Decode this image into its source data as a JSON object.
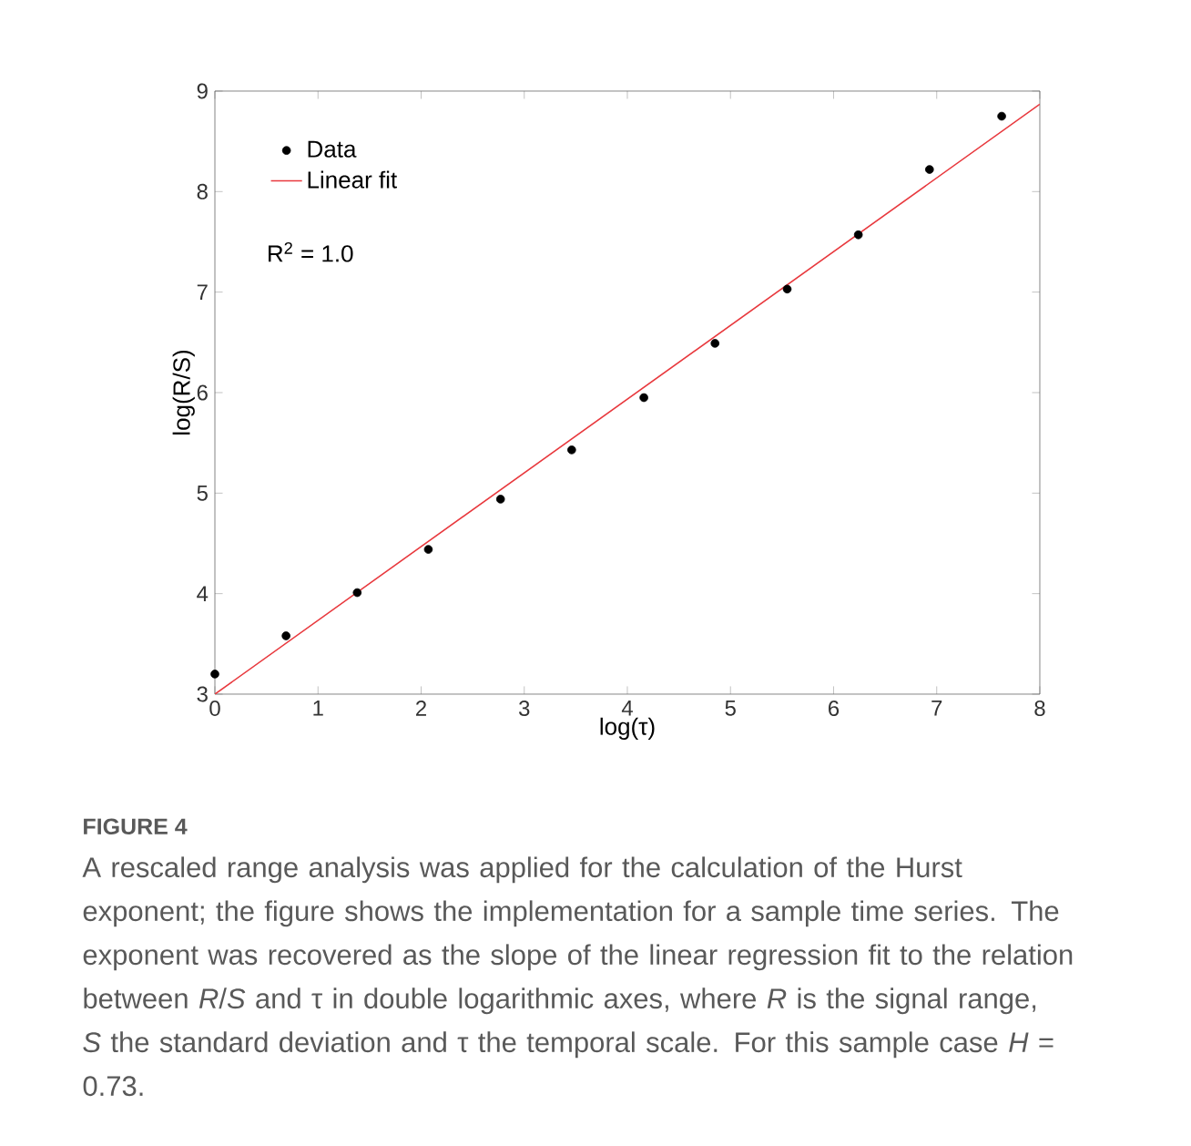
{
  "chart_data": {
    "type": "scatter",
    "xlabel": "log(τ)",
    "ylabel": "log(R/S)",
    "xlim": [
      0,
      8
    ],
    "ylim": [
      3,
      9
    ],
    "xticks": [
      0,
      1,
      2,
      3,
      4,
      5,
      6,
      7,
      8
    ],
    "yticks": [
      3,
      4,
      5,
      6,
      7,
      8,
      9
    ],
    "grid": false,
    "legend": "top left",
    "series": [
      {
        "name": "Data",
        "color": "#000000",
        "marker": "circle",
        "x": [
          0,
          0.69,
          1.38,
          2.07,
          2.77,
          3.46,
          4.16,
          4.85,
          5.55,
          6.24,
          6.93,
          7.63
        ],
        "values": [
          3.2,
          3.58,
          4.01,
          4.44,
          4.94,
          5.43,
          5.95,
          6.49,
          7.03,
          7.57,
          8.22,
          8.75
        ]
      },
      {
        "name": "Linear fit",
        "type": "line",
        "color": "#e8383d",
        "marker": "none",
        "line_style": "solid",
        "x": [
          0,
          8
        ],
        "values": [
          3.0,
          8.87
        ]
      }
    ],
    "annotations": [
      "R$^{2}$ = 1.0",
      "FIGURE 4",
      "A rescaled range analysis was applied for the calculation of the Hurst exponent; the figure shows the implementation for a sample time series. The exponent was recovered as the slope of the linear regression fit to the relation between *R*/*S* and τ in double logarithmic axes, where *R* is the signal range, *S* the standard deviation and τ the temporal scale. For this sample case *H* = 0.73."
    ]
  }
}
